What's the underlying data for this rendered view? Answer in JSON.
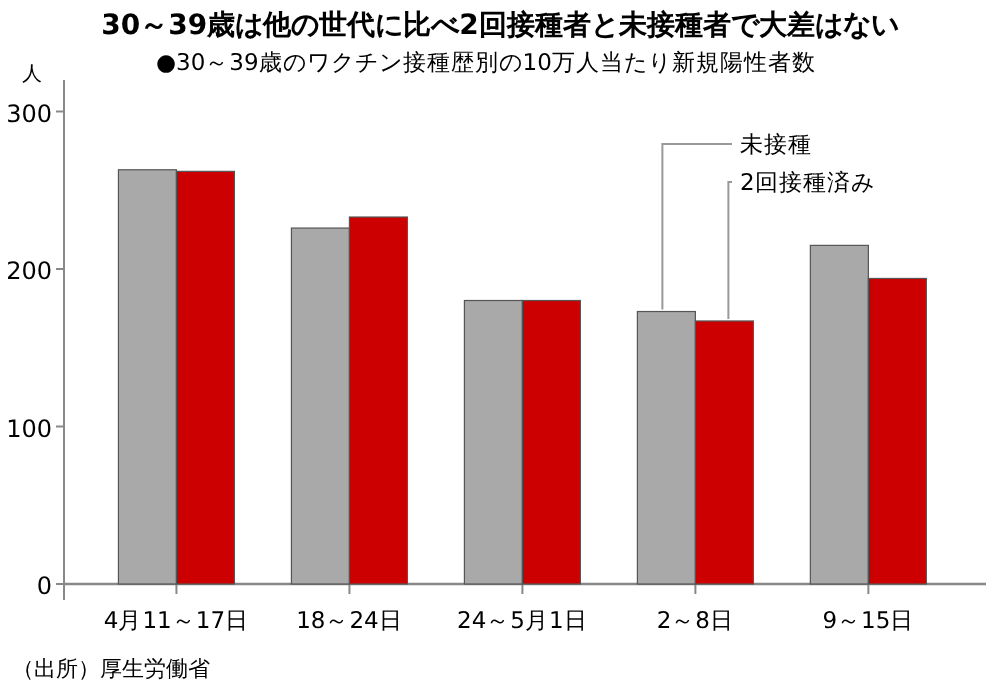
{
  "chart_data": {
    "type": "bar",
    "title": "30～39歳は他の世代に比べ2回接種者と未接種者で大差はない",
    "subtitle": "●30～39歳のワクチン接種歴別の10万人当たり新規陽性者数",
    "ylabel": "人",
    "categories": [
      "4月11～17日",
      "18～24日",
      "24～5月1日",
      "2～8日",
      "9～15日"
    ],
    "series": [
      {
        "name": "未接種",
        "color": "#a9a9a9",
        "values": [
          263,
          226,
          180,
          173,
          215
        ]
      },
      {
        "name": "2回接種済み",
        "color": "#cc0000",
        "values": [
          262,
          233,
          180,
          167,
          194
        ]
      }
    ],
    "ylim": [
      0,
      320
    ],
    "yticks": [
      0,
      100,
      200,
      300
    ],
    "legend": "top right",
    "annotations": [
      "（出所）厚生労働省"
    ]
  }
}
